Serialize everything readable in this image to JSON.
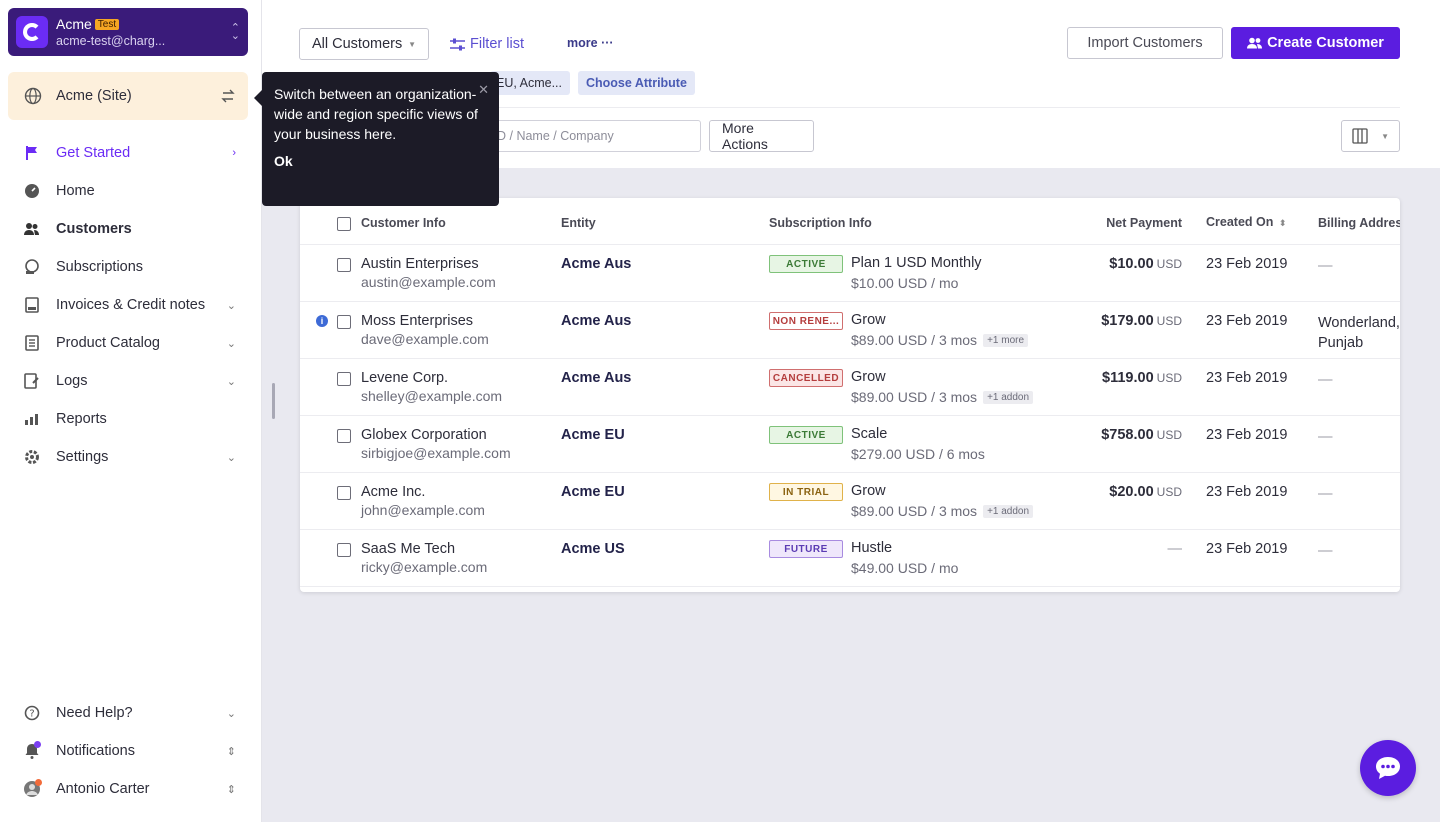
{
  "site": {
    "name": "Acme",
    "badge": "Test",
    "email": "acme-test@charg..."
  },
  "org": {
    "label": "Acme (Site)"
  },
  "nav": [
    {
      "label": "Get Started",
      "icon": "flag-icon",
      "chevron": "right"
    },
    {
      "label": "Home",
      "icon": "dashboard-icon"
    },
    {
      "label": "Customers",
      "icon": "users-icon"
    },
    {
      "label": "Subscriptions",
      "icon": "subscriptions-icon"
    },
    {
      "label": "Invoices & Credit notes",
      "icon": "invoice-icon",
      "chevron": "down"
    },
    {
      "label": "Product Catalog",
      "icon": "catalog-icon",
      "chevron": "down"
    },
    {
      "label": "Logs",
      "icon": "logs-icon",
      "chevron": "down"
    },
    {
      "label": "Reports",
      "icon": "reports-icon"
    },
    {
      "label": "Settings",
      "icon": "gear-icon",
      "chevron": "down"
    }
  ],
  "bottom_nav": [
    {
      "label": "Need Help?",
      "icon": "help-icon"
    },
    {
      "label": "Notifications",
      "icon": "bell-icon"
    },
    {
      "label": "Antonio Carter",
      "icon": "avatar"
    }
  ],
  "header": {
    "view_select": "All Customers",
    "filter_link": "Filter list",
    "more_link": "more",
    "import_button": "Import Customers",
    "create_button": "Create Customer",
    "chip_entity": "EU, Acme...",
    "chip_attribute": "Choose Attribute",
    "search_placeholder": "D / Name / Company",
    "more_actions": "More Actions"
  },
  "tooltip": {
    "message": "Switch between an organization-wide and region specific views of your business here.",
    "ok": "Ok"
  },
  "table": {
    "columns": [
      "Customer Info",
      "Entity",
      "Subscription Info",
      "Net Payment",
      "Created On",
      "Billing Addres"
    ],
    "rows": [
      {
        "name": "Austin Enterprises",
        "email": "austin@example.com",
        "entity": "Acme Aus",
        "status": "ACTIVE",
        "status_type": "active",
        "plan": "Plan 1 USD Monthly",
        "price": "$10.00 USD / mo",
        "extra": "",
        "payment": "$10.00",
        "currency": "USD",
        "created": "23 Feb 2019",
        "billing": "—",
        "billing2": "",
        "info": false
      },
      {
        "name": "Moss Enterprises",
        "email": "dave@example.com",
        "entity": "Acme Aus",
        "status": "NON RENE...",
        "status_type": "nonren",
        "plan": "Grow",
        "price": "$89.00 USD / 3 mos",
        "extra": "+1 more",
        "payment": "$179.00",
        "currency": "USD",
        "created": "23 Feb 2019",
        "billing": "Wonderland,",
        "billing2": "Punjab",
        "info": true
      },
      {
        "name": "Levene Corp.",
        "email": "shelley@example.com",
        "entity": "Acme Aus",
        "status": "CANCELLED",
        "status_type": "cancel",
        "plan": "Grow",
        "price": "$89.00 USD / 3 mos",
        "extra": "+1 addon",
        "payment": "$119.00",
        "currency": "USD",
        "created": "23 Feb 2019",
        "billing": "—",
        "billing2": "",
        "info": false
      },
      {
        "name": "Globex Corporation",
        "email": "sirbigjoe@example.com",
        "entity": "Acme EU",
        "status": "ACTIVE",
        "status_type": "active",
        "plan": "Scale",
        "price": "$279.00 USD / 6 mos",
        "extra": "",
        "payment": "$758.00",
        "currency": "USD",
        "created": "23 Feb 2019",
        "billing": "—",
        "billing2": "",
        "info": false
      },
      {
        "name": "Acme Inc.",
        "email": "john@example.com",
        "entity": "Acme EU",
        "status": "IN TRIAL",
        "status_type": "trial",
        "plan": "Grow",
        "price": "$89.00 USD / 3 mos",
        "extra": "+1 addon",
        "payment": "$20.00",
        "currency": "USD",
        "created": "23 Feb 2019",
        "billing": "—",
        "billing2": "",
        "info": false
      },
      {
        "name": "SaaS Me Tech",
        "email": "ricky@example.com",
        "entity": "Acme US",
        "status": "FUTURE",
        "status_type": "future",
        "plan": "Hustle",
        "price": "$49.00 USD / mo",
        "extra": "",
        "payment": "—",
        "currency": "",
        "created": "23 Feb 2019",
        "billing": "—",
        "billing2": "",
        "info": false
      }
    ]
  },
  "colors": {
    "brand": "#5b1de0",
    "sidebar_header": "#3a1b7a",
    "org_bg": "#fdf0dc",
    "tooltip_bg": "#1c1b27"
  }
}
